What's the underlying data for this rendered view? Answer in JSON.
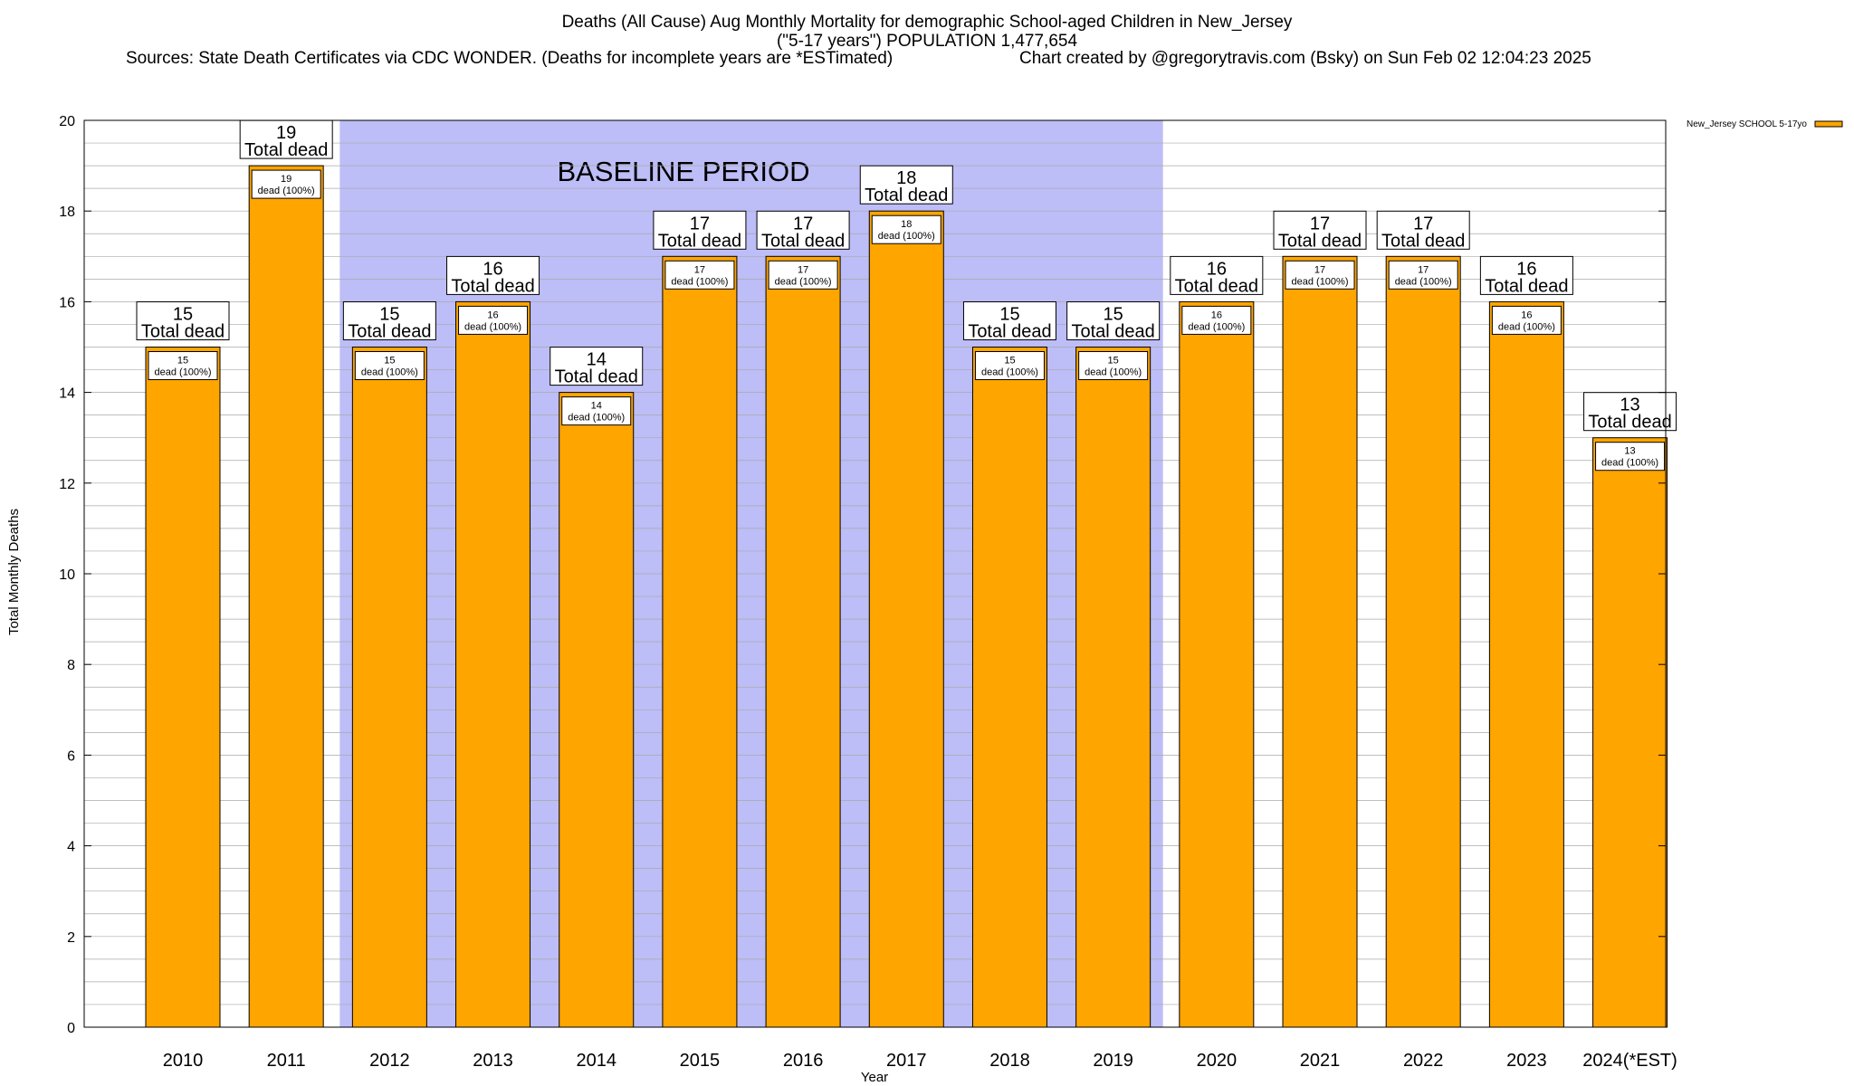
{
  "header": {
    "title_line1": "Deaths (All Cause) Aug Monthly Mortality for demographic School-aged Children in New_Jersey",
    "title_line2": "(\"5-17 years\") POPULATION 1,477,654",
    "sources": "Sources: State Death Certificates via CDC WONDER. (Deaths for incomplete years are *ESTimated)",
    "credit": "Chart created by @gregorytravis.com (Bsky) on Sun Feb 02 12:04:23 2025"
  },
  "chart_data": {
    "type": "bar",
    "title": "Deaths (All Cause) Aug Monthly Mortality for demographic School-aged Children in New_Jersey",
    "xlabel": "Year",
    "ylabel": "Total Monthly Deaths",
    "ylim": [
      0,
      20
    ],
    "y_ticks": [
      0,
      2,
      4,
      6,
      8,
      10,
      12,
      14,
      16,
      18,
      20
    ],
    "y_minor_step": 0.5,
    "grid": true,
    "legend_position": "top-right",
    "categories": [
      "2010",
      "2011",
      "2012",
      "2013",
      "2014",
      "2015",
      "2016",
      "2017",
      "2018",
      "2019",
      "2020",
      "2021",
      "2022",
      "2023",
      "2024(*EST)"
    ],
    "series": [
      {
        "name": "New_Jersey SCHOOL 5-17yo",
        "color": "#ffa500",
        "values": [
          15,
          19,
          15,
          16,
          14,
          17,
          17,
          18,
          15,
          15,
          16,
          17,
          17,
          16,
          13
        ]
      }
    ],
    "bar_labels_top": [
      "15\nTotal dead",
      "19\nTotal dead",
      "15\nTotal dead",
      "16\nTotal dead",
      "14\nTotal dead",
      "17\nTotal dead",
      "17\nTotal dead",
      "18\nTotal dead",
      "15\nTotal dead",
      "15\nTotal dead",
      "16\nTotal dead",
      "17\nTotal dead",
      "17\nTotal dead",
      "16\nTotal dead",
      "13\nTotal dead"
    ],
    "bar_labels_inner": [
      "15\ndead (100%)",
      "19\ndead (100%)",
      "15\ndead (100%)",
      "16\ndead (100%)",
      "14\ndead (100%)",
      "17\ndead (100%)",
      "17\ndead (100%)",
      "18\ndead (100%)",
      "15\ndead (100%)",
      "15\ndead (100%)",
      "16\ndead (100%)",
      "17\ndead (100%)",
      "17\ndead (100%)",
      "16\ndead (100%)",
      "13\ndead (100%)"
    ],
    "annotations": [
      {
        "text": "BASELINE PERIOD",
        "from_category": "2012",
        "to_category": "2019",
        "color": "#bdbdf7"
      }
    ]
  }
}
